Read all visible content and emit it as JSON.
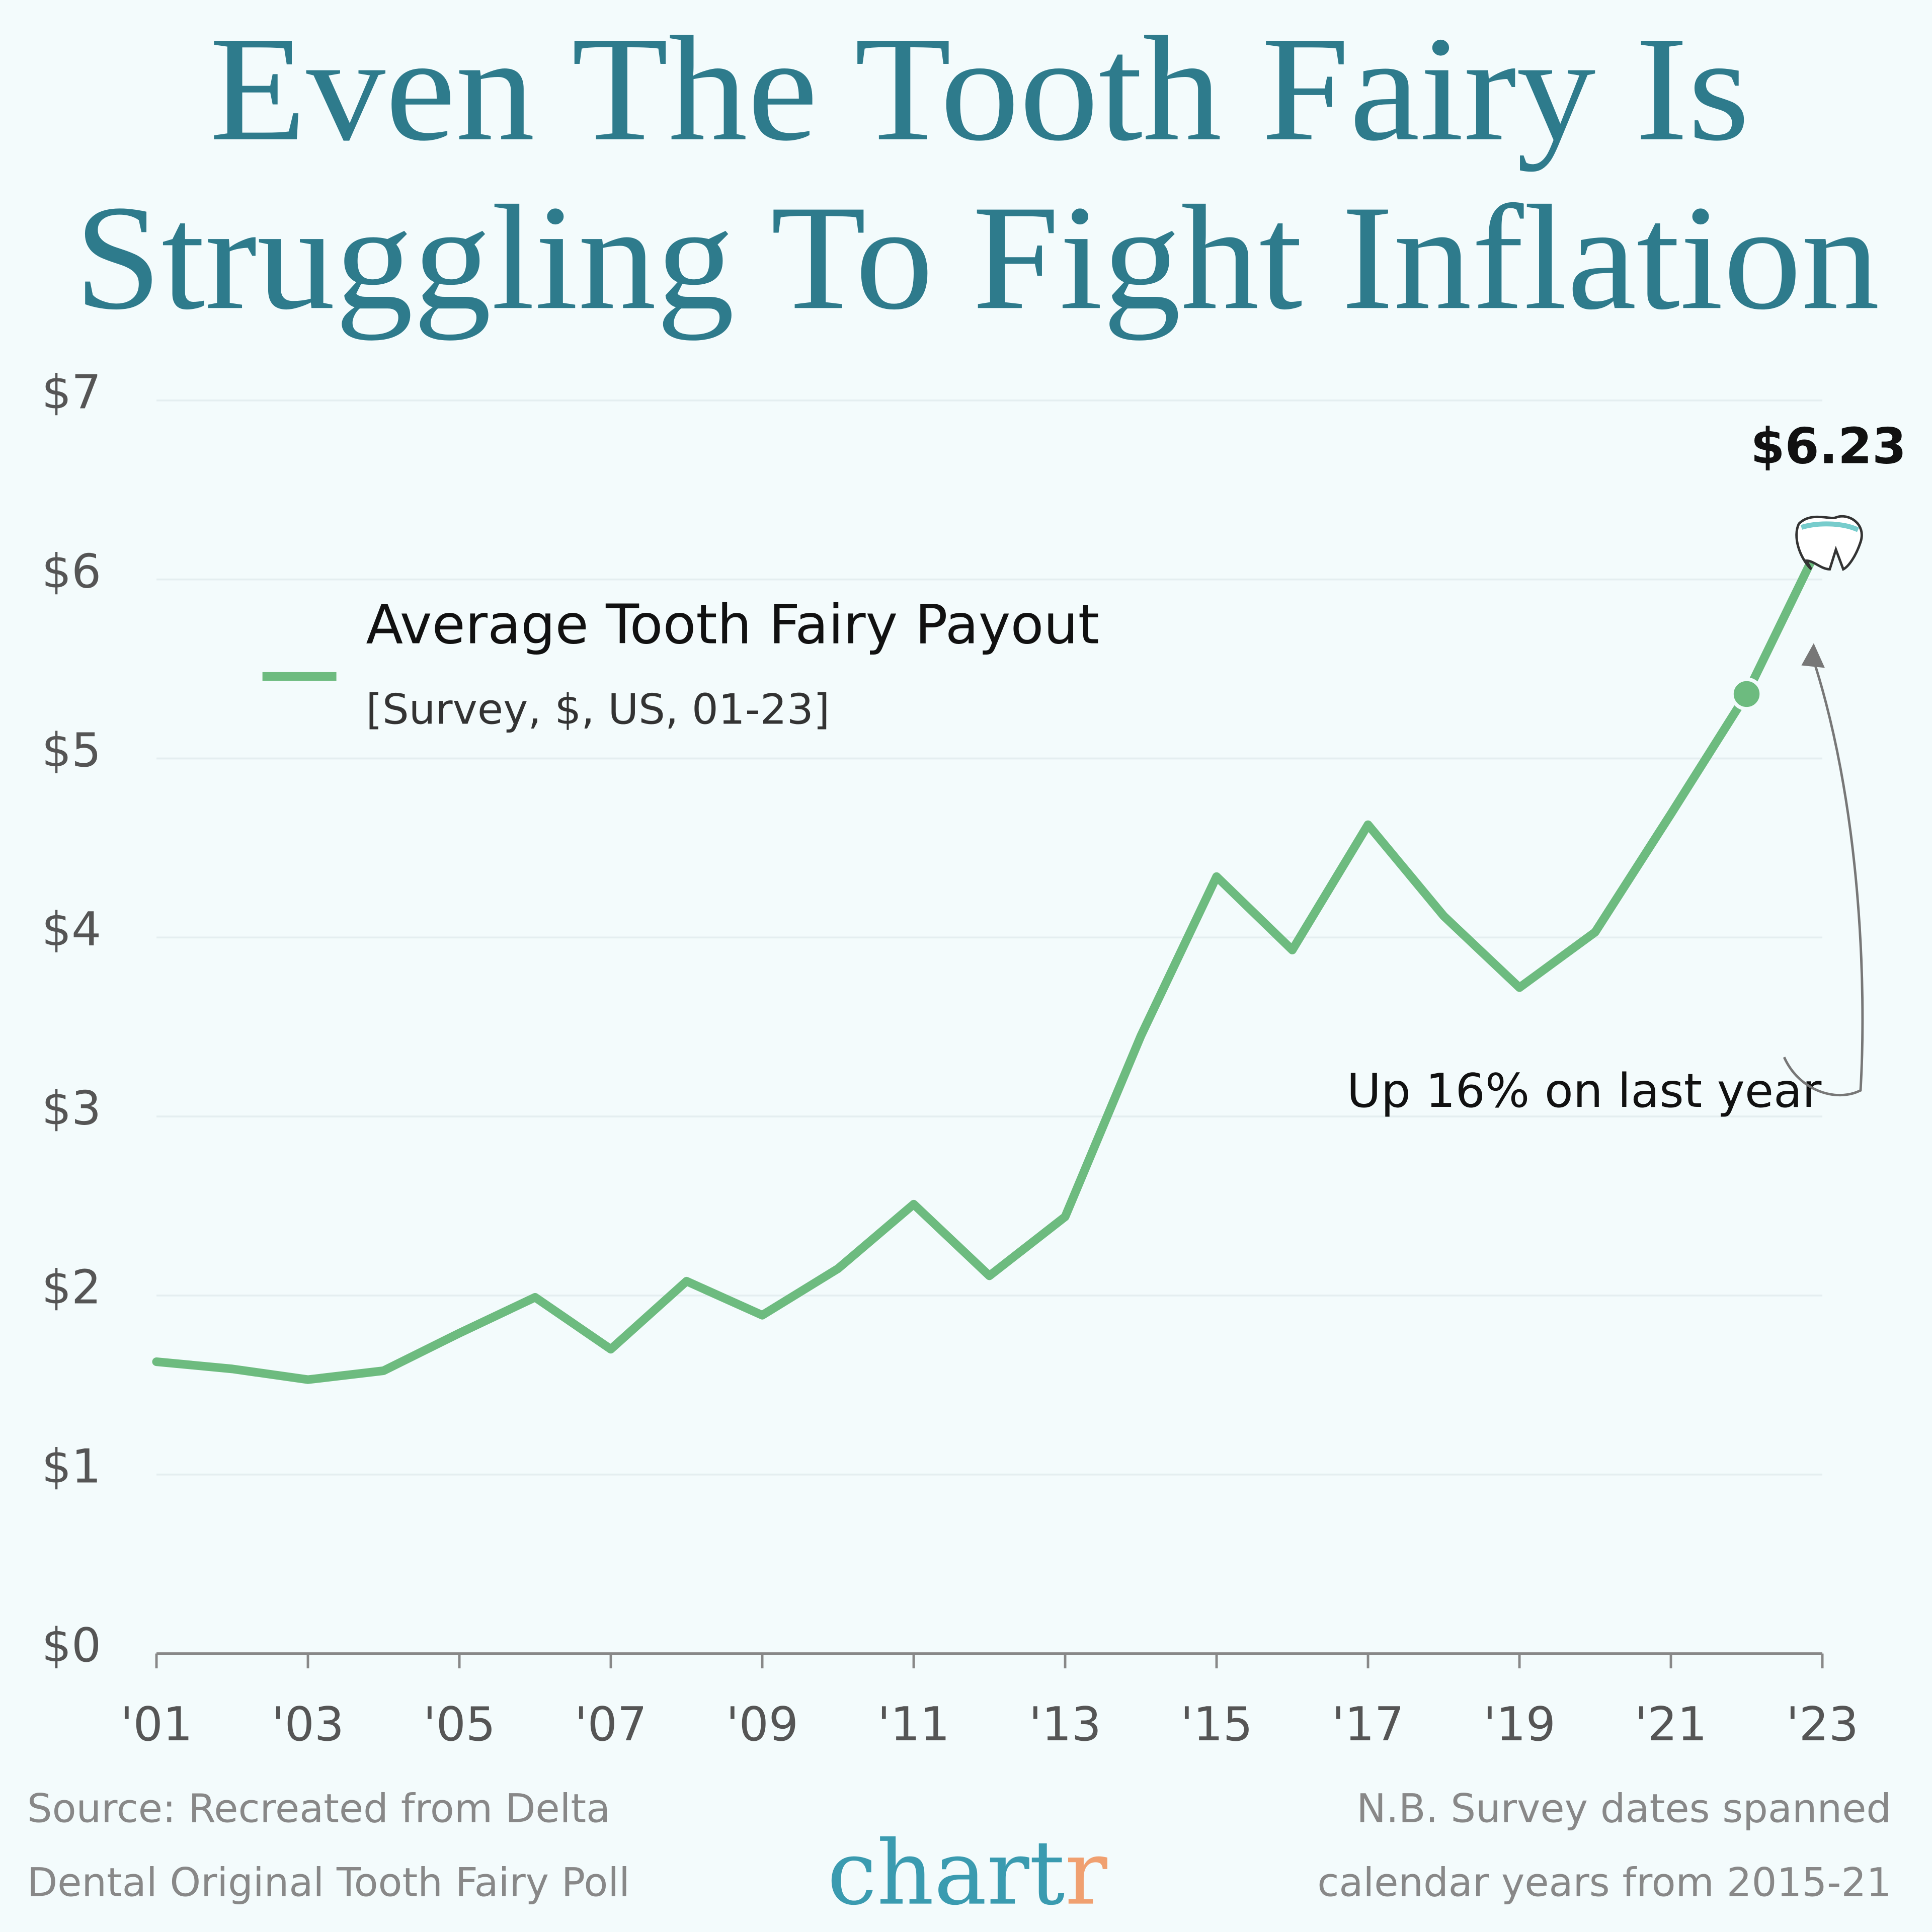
{
  "chart_data": {
    "type": "line",
    "title": [
      "Even The Tooth Fairy Is",
      "Struggling To Fight Inflation"
    ],
    "x": [
      2001,
      2002,
      2003,
      2004,
      2005,
      2006,
      2007,
      2008,
      2009,
      2010,
      2011,
      2012,
      2013,
      2014,
      2015,
      2016,
      2017,
      2018,
      2019,
      2020,
      2021,
      2022,
      2023
    ],
    "series": [
      {
        "name": "Average Tooth Fairy Payout",
        "subtitle": "[Survey, $, US, 01-23]",
        "color": "#6dbb7f",
        "values": [
          1.63,
          1.59,
          1.53,
          1.58,
          1.79,
          1.99,
          1.7,
          2.08,
          1.89,
          2.15,
          2.51,
          2.11,
          2.44,
          3.45,
          4.34,
          3.93,
          4.63,
          4.12,
          3.72,
          4.03,
          4.69,
          5.36,
          6.23
        ],
        "value_labels": [
          null,
          null,
          null,
          null,
          null,
          null,
          null,
          null,
          null,
          null,
          null,
          null,
          null,
          null,
          null,
          null,
          null,
          null,
          null,
          null,
          null,
          null,
          "$6.23"
        ]
      }
    ],
    "xlim": [
      2001,
      2023
    ],
    "xticks": [
      {
        "value": 2001,
        "label": "'01"
      },
      {
        "value": 2003,
        "label": "'03"
      },
      {
        "value": 2005,
        "label": "'05"
      },
      {
        "value": 2007,
        "label": "'07"
      },
      {
        "value": 2009,
        "label": "'09"
      },
      {
        "value": 2011,
        "label": "'11"
      },
      {
        "value": 2013,
        "label": "'13"
      },
      {
        "value": 2015,
        "label": "'15"
      },
      {
        "value": 2017,
        "label": "'17"
      },
      {
        "value": 2019,
        "label": "'19"
      },
      {
        "value": 2021,
        "label": "'21"
      },
      {
        "value": 2023,
        "label": "'23"
      }
    ],
    "ylim": [
      0,
      7
    ],
    "yticks": [
      {
        "value": 0,
        "label": "$0"
      },
      {
        "value": 1,
        "label": "$1"
      },
      {
        "value": 2,
        "label": "$2"
      },
      {
        "value": 3,
        "label": "$3"
      },
      {
        "value": 4,
        "label": "$4"
      },
      {
        "value": 5,
        "label": "$5"
      },
      {
        "value": 6,
        "label": "$6"
      },
      {
        "value": 7,
        "label": "$7"
      }
    ],
    "grid": true,
    "annotation": "Up 16% on last year",
    "source": [
      "Source: Recreated from Delta",
      "Dental Original Tooth Fairy Poll"
    ],
    "note": [
      "N.B. Survey dates spanned",
      "calendar years from 2015-21"
    ],
    "logo": [
      "chart",
      "r"
    ]
  }
}
